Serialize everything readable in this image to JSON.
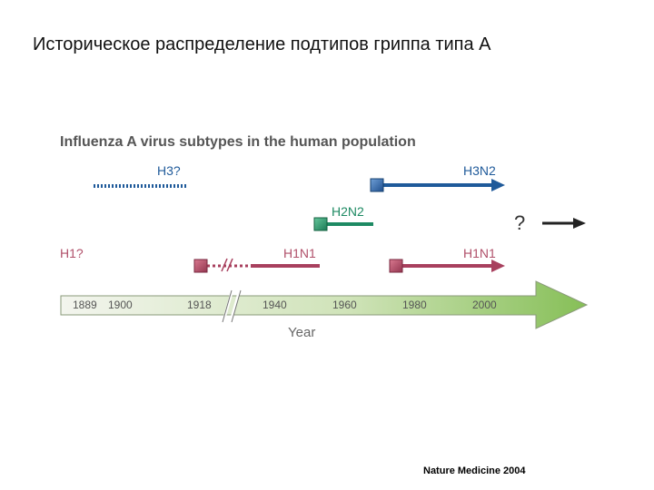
{
  "slide": {
    "title": "Историческое распределение подтипов гриппа типа А",
    "source": "Nature Medicine 2004"
  },
  "diagram": {
    "title": "Influenza A virus subtypes in the human population",
    "axis_title": "Year",
    "years": [
      "1889",
      "1900",
      "1918",
      "1940",
      "1960",
      "1980",
      "2000"
    ],
    "subtypes": {
      "h3_question": "H3?",
      "h3n2": "H3N2",
      "h2n2": "H2N2",
      "h1_question": "H1?",
      "h1n1_early": "H1N1",
      "h1n1_late": "H1N1",
      "future": "?"
    },
    "colors": {
      "h3": "#1f5a9a",
      "h2": "#1e8a63",
      "h1": "#a8405e",
      "axis_start": "#f2f4ec",
      "axis_end": "#8ac25a"
    }
  }
}
